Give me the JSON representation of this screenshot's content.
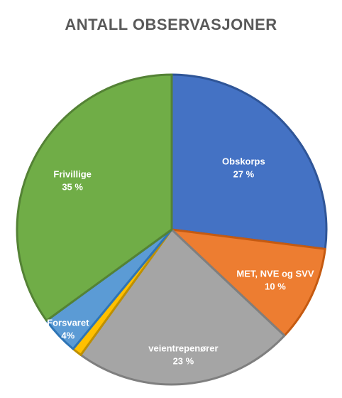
{
  "chart_data": {
    "type": "pie",
    "title": "ANTALL OBSERVASJONER",
    "slices": [
      {
        "name": "Obskorps",
        "value": 27,
        "value_label": "27 %",
        "color": "#4472C4",
        "border": "#2F5597"
      },
      {
        "name": "MET, NVE og SVV",
        "value": 10,
        "value_label": "10 %",
        "color": "#ED7D31",
        "border": "#C55A11"
      },
      {
        "name": "veientrepenører",
        "value": 23,
        "value_label": "23 %",
        "color": "#A5A5A5",
        "border": "#7F7F7F"
      },
      {
        "name": "",
        "value": 1,
        "value_label": "",
        "color": "#FFC000",
        "border": "#BF9000"
      },
      {
        "name": "Forsvaret",
        "value": 4,
        "value_label": "4%",
        "color": "#5B9BD5",
        "border": "#2E75B6"
      },
      {
        "name": "Frivillige",
        "value": 35,
        "value_label": "35 %",
        "color": "#70AD47",
        "border": "#548235"
      }
    ],
    "legend": "none",
    "start_angle_deg": 0,
    "direction": "clockwise"
  }
}
